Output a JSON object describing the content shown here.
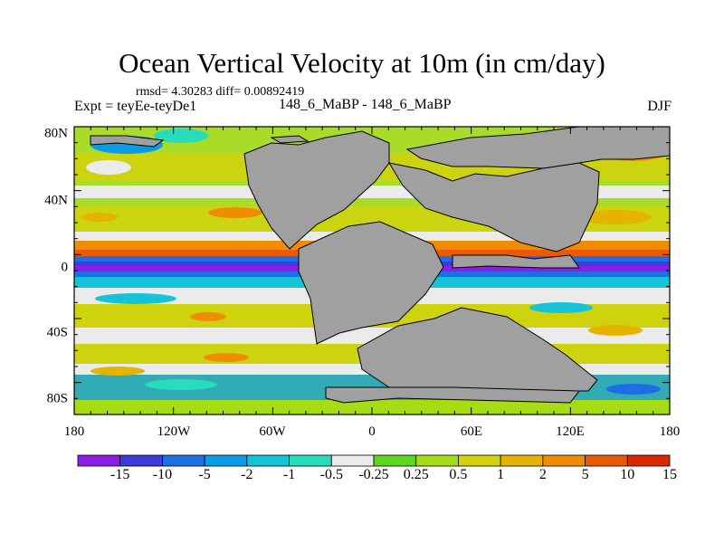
{
  "title": "Ocean Vertical Velocity at 10m (in cm/day)",
  "stats": "rmsd= 4.30283  diff= 0.00892419",
  "expt_label": "Expt = teyEe-teyDe1",
  "subtitle": "148_6_MaBP - 148_6_MaBP",
  "season": "DJF",
  "map": {
    "lat_labels": [
      "80N",
      "40N",
      "0",
      "40S",
      "80S"
    ],
    "lon_labels": [
      "180",
      "120W",
      "60W",
      "0",
      "60E",
      "120E",
      "180"
    ],
    "land_color": "#a0a0a0"
  },
  "colorbar": {
    "labels": [
      "-15",
      "-10",
      "-5",
      "-2",
      "-1",
      "-0.5",
      "-0.25",
      "0.25",
      "0.5",
      "1",
      "2",
      "5",
      "10",
      "15"
    ],
    "colors": [
      "#8c1ee6",
      "#3c3cdc",
      "#1e6ee6",
      "#0a9be6",
      "#14c3d7",
      "#28dcbe",
      "#ebebeb",
      "#5ad71e",
      "#a5dc14",
      "#d2d20a",
      "#e6b400",
      "#f08c00",
      "#eb5a00",
      "#dc2800"
    ]
  },
  "colors": {
    "ocean_bg": "#a8dc28",
    "axis": "#000000"
  }
}
